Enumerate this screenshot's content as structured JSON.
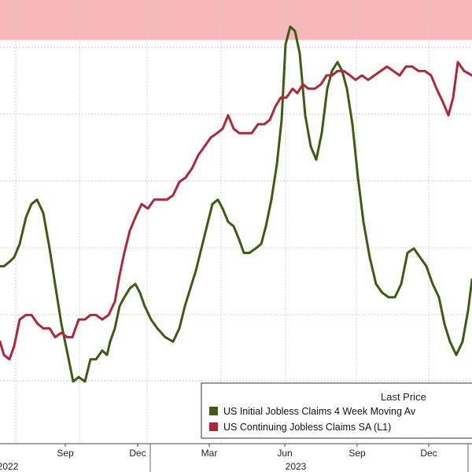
{
  "chart_data": {
    "type": "line",
    "x_tick_labels": [
      "Sep",
      "Dec",
      "Mar",
      "Jun",
      "Sep",
      "Dec"
    ],
    "year_labels": [
      "2022",
      "2023"
    ],
    "legend": {
      "title": "Last Price",
      "position": "bottom-right"
    },
    "highlight_band": {
      "y_from": 0.0,
      "y_to": 0.09,
      "color": "#f7b8bc"
    },
    "grid": true,
    "colors": {
      "green": "#3d5c12",
      "red": "#b3263a",
      "band": "#f7b8bc"
    },
    "series": [
      {
        "name": "US Initial Jobless Claims 4 Week Moving Av",
        "color": "#3d5c12",
        "values": [
          [
            0,
            0.6
          ],
          [
            5,
            0.6
          ],
          [
            12,
            0.59
          ],
          [
            18,
            0.58
          ],
          [
            25,
            0.55
          ],
          [
            33,
            0.49
          ],
          [
            40,
            0.46
          ],
          [
            47,
            0.45
          ],
          [
            55,
            0.48
          ],
          [
            63,
            0.56
          ],
          [
            70,
            0.64
          ],
          [
            78,
            0.73
          ],
          [
            85,
            0.79
          ],
          [
            93,
            0.86
          ],
          [
            100,
            0.85
          ],
          [
            108,
            0.86
          ],
          [
            115,
            0.81
          ],
          [
            122,
            0.81
          ],
          [
            130,
            0.79
          ],
          [
            136,
            0.8
          ],
          [
            140,
            0.77
          ],
          [
            146,
            0.74
          ],
          [
            152,
            0.69
          ],
          [
            158,
            0.67
          ],
          [
            165,
            0.65
          ],
          [
            172,
            0.64
          ],
          [
            178,
            0.66
          ],
          [
            184,
            0.69
          ],
          [
            192,
            0.72
          ],
          [
            200,
            0.74
          ],
          [
            210,
            0.76
          ],
          [
            220,
            0.77
          ],
          [
            228,
            0.74
          ],
          [
            235,
            0.69
          ],
          [
            242,
            0.65
          ],
          [
            249,
            0.61
          ],
          [
            256,
            0.56
          ],
          [
            263,
            0.51
          ],
          [
            270,
            0.46
          ],
          [
            277,
            0.45
          ],
          [
            283,
            0.47
          ],
          [
            290,
            0.5
          ],
          [
            297,
            0.51
          ],
          [
            304,
            0.54
          ],
          [
            310,
            0.57
          ],
          [
            317,
            0.57
          ],
          [
            325,
            0.56
          ],
          [
            332,
            0.55
          ],
          [
            338,
            0.51
          ],
          [
            345,
            0.45
          ],
          [
            352,
            0.37
          ],
          [
            358,
            0.27
          ],
          [
            363,
            0.1
          ],
          [
            369,
            0.06
          ],
          [
            375,
            0.07
          ],
          [
            381,
            0.12
          ],
          [
            388,
            0.26
          ],
          [
            395,
            0.33
          ],
          [
            402,
            0.36
          ],
          [
            409,
            0.3
          ],
          [
            416,
            0.2
          ],
          [
            422,
            0.16
          ],
          [
            429,
            0.14
          ],
          [
            435,
            0.16
          ],
          [
            441,
            0.2
          ],
          [
            448,
            0.28
          ],
          [
            455,
            0.4
          ],
          [
            462,
            0.5
          ],
          [
            470,
            0.58
          ],
          [
            478,
            0.64
          ],
          [
            486,
            0.66
          ],
          [
            494,
            0.67
          ],
          [
            502,
            0.67
          ],
          [
            510,
            0.64
          ],
          [
            518,
            0.57
          ],
          [
            526,
            0.56
          ],
          [
            534,
            0.58
          ],
          [
            542,
            0.6
          ],
          [
            550,
            0.64
          ],
          [
            558,
            0.67
          ],
          [
            565,
            0.73
          ],
          [
            572,
            0.77
          ],
          [
            580,
            0.8
          ],
          [
            588,
            0.77
          ],
          [
            595,
            0.7
          ],
          [
            600,
            0.63
          ]
        ]
      },
      {
        "name": "US Continuing Jobless Claims SA  (L1)",
        "color": "#b3263a",
        "values": [
          [
            0,
            0.77
          ],
          [
            5,
            0.8
          ],
          [
            12,
            0.81
          ],
          [
            18,
            0.78
          ],
          [
            25,
            0.72
          ],
          [
            33,
            0.71
          ],
          [
            40,
            0.71
          ],
          [
            48,
            0.73
          ],
          [
            55,
            0.74
          ],
          [
            63,
            0.74
          ],
          [
            70,
            0.76
          ],
          [
            78,
            0.75
          ],
          [
            85,
            0.76
          ],
          [
            92,
            0.76
          ],
          [
            100,
            0.72
          ],
          [
            108,
            0.72
          ],
          [
            115,
            0.71
          ],
          [
            122,
            0.71
          ],
          [
            130,
            0.72
          ],
          [
            138,
            0.71
          ],
          [
            146,
            0.68
          ],
          [
            152,
            0.62
          ],
          [
            158,
            0.57
          ],
          [
            165,
            0.52
          ],
          [
            172,
            0.49
          ],
          [
            180,
            0.46
          ],
          [
            188,
            0.47
          ],
          [
            196,
            0.45
          ],
          [
            204,
            0.45
          ],
          [
            212,
            0.45
          ],
          [
            220,
            0.44
          ],
          [
            228,
            0.41
          ],
          [
            236,
            0.4
          ],
          [
            244,
            0.38
          ],
          [
            252,
            0.35
          ],
          [
            260,
            0.33
          ],
          [
            268,
            0.31
          ],
          [
            276,
            0.3
          ],
          [
            283,
            0.29
          ],
          [
            290,
            0.26
          ],
          [
            297,
            0.29
          ],
          [
            304,
            0.3
          ],
          [
            312,
            0.3
          ],
          [
            320,
            0.3
          ],
          [
            328,
            0.28
          ],
          [
            336,
            0.28
          ],
          [
            343,
            0.27
          ],
          [
            350,
            0.24
          ],
          [
            357,
            0.22
          ],
          [
            364,
            0.22
          ],
          [
            372,
            0.2
          ],
          [
            378,
            0.21
          ],
          [
            385,
            0.19
          ],
          [
            392,
            0.2
          ],
          [
            400,
            0.2
          ],
          [
            408,
            0.19
          ],
          [
            415,
            0.17
          ],
          [
            422,
            0.17
          ],
          [
            429,
            0.16
          ],
          [
            437,
            0.16
          ],
          [
            445,
            0.17
          ],
          [
            452,
            0.18
          ],
          [
            460,
            0.17
          ],
          [
            468,
            0.18
          ],
          [
            476,
            0.17
          ],
          [
            484,
            0.16
          ],
          [
            492,
            0.15
          ],
          [
            500,
            0.16
          ],
          [
            508,
            0.17
          ],
          [
            516,
            0.15
          ],
          [
            524,
            0.15
          ],
          [
            532,
            0.16
          ],
          [
            540,
            0.16
          ],
          [
            548,
            0.17
          ],
          [
            555,
            0.2
          ],
          [
            563,
            0.23
          ],
          [
            570,
            0.26
          ],
          [
            576,
            0.22
          ],
          [
            582,
            0.14
          ],
          [
            590,
            0.16
          ],
          [
            600,
            0.17
          ]
        ]
      }
    ]
  }
}
